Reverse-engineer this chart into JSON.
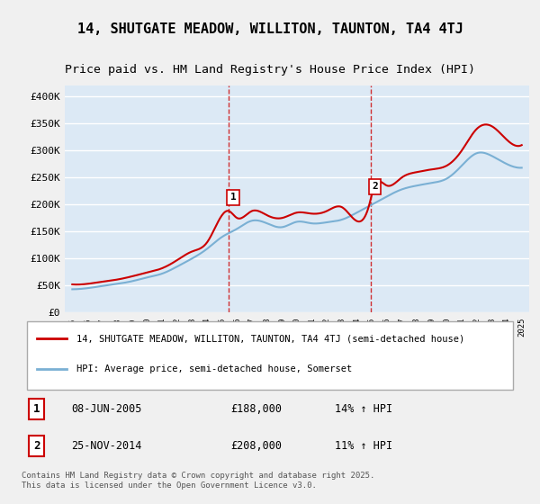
{
  "title": "14, SHUTGATE MEADOW, WILLITON, TAUNTON, TA4 4TJ",
  "subtitle": "Price paid vs. HM Land Registry's House Price Index (HPI)",
  "title_fontsize": 11,
  "subtitle_fontsize": 9.5,
  "ylabel": "",
  "ylim": [
    0,
    420000
  ],
  "yticks": [
    0,
    50000,
    100000,
    150000,
    200000,
    250000,
    300000,
    350000,
    400000
  ],
  "ytick_labels": [
    "£0",
    "£50K",
    "£100K",
    "£150K",
    "£200K",
    "£250K",
    "£300K",
    "£350K",
    "£400K"
  ],
  "bg_color": "#dce9f5",
  "plot_bg_color": "#dce9f5",
  "grid_color": "#ffffff",
  "line1_color": "#cc0000",
  "line2_color": "#7ab0d4",
  "vline_color": "#cc0000",
  "marker1_color": "#cc0000",
  "sale1_x": 2005.44,
  "sale1_y": 188000,
  "sale1_label": "1",
  "sale2_x": 2014.9,
  "sale2_y": 208000,
  "sale2_label": "2",
  "vline1_x": 2005.44,
  "vline2_x": 2014.9,
  "legend1_label": "14, SHUTGATE MEADOW, WILLITON, TAUNTON, TA4 4TJ (semi-detached house)",
  "legend2_label": "HPI: Average price, semi-detached house, Somerset",
  "note1_num": "1",
  "note1_date": "08-JUN-2005",
  "note1_price": "£188,000",
  "note1_hpi": "14% ↑ HPI",
  "note2_num": "2",
  "note2_date": "25-NOV-2014",
  "note2_price": "£208,000",
  "note2_hpi": "11% ↑ HPI",
  "footer": "Contains HM Land Registry data © Crown copyright and database right 2025.\nThis data is licensed under the Open Government Licence v3.0.",
  "xlim_start": 1995,
  "xlim_end": 2025.5,
  "hpi_years": [
    1995,
    1996,
    1997,
    1998,
    1999,
    2000,
    2001,
    2002,
    2003,
    2004,
    2005,
    2006,
    2007,
    2008,
    2009,
    2010,
    2011,
    2012,
    2013,
    2014,
    2015,
    2016,
    2017,
    2018,
    2019,
    2020,
    2021,
    2022,
    2023,
    2024,
    2025
  ],
  "hpi_values": [
    43000,
    45000,
    49000,
    53000,
    58000,
    65000,
    72000,
    85000,
    100000,
    118000,
    140000,
    155000,
    170000,
    165000,
    158000,
    168000,
    165000,
    167000,
    172000,
    185000,
    200000,
    215000,
    228000,
    235000,
    240000,
    248000,
    272000,
    295000,
    290000,
    275000,
    268000
  ],
  "price_years": [
    1995,
    1996,
    1997,
    1998,
    1999,
    2000,
    2001,
    2002,
    2003,
    2004,
    2005.44,
    2006,
    2007,
    2008,
    2009,
    2010,
    2011,
    2012,
    2013,
    2014.9,
    2015,
    2016,
    2017,
    2018,
    2019,
    2020,
    2021,
    2022,
    2023,
    2024,
    2025
  ],
  "price_values": [
    52000,
    53000,
    57000,
    61000,
    67000,
    74000,
    82000,
    97000,
    113000,
    130000,
    188000,
    175000,
    188000,
    180000,
    175000,
    185000,
    183000,
    188000,
    195000,
    208000,
    220000,
    235000,
    250000,
    260000,
    265000,
    272000,
    300000,
    340000,
    345000,
    320000,
    310000
  ]
}
